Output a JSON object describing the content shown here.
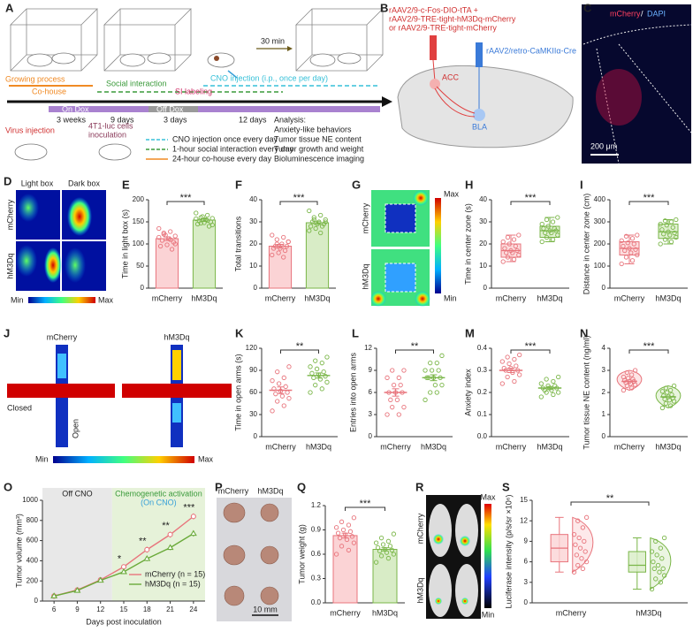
{
  "panel_labels": [
    "A",
    "B",
    "C",
    "D",
    "E",
    "F",
    "G",
    "H",
    "I",
    "J",
    "K",
    "L",
    "M",
    "N",
    "O",
    "P",
    "Q",
    "R",
    "S"
  ],
  "panel_A": {
    "growing": "Growing process",
    "cohouse": "Co-house",
    "social": "Social interaction",
    "si_label": "SI labeling",
    "cno": "CNO injection (i.p., once per day)",
    "wait": "30 min",
    "on_dox": "On Dox",
    "off_dox": "Off Dox",
    "durations": [
      "3 weeks",
      "9 days",
      "3 days",
      "12 days"
    ],
    "analysis_title": "Analysis:",
    "analysis": [
      "Anxiety-like behaviors",
      "Tumor tissue NE content",
      "Tumor growth and weight",
      "Bioluminescence imaging"
    ],
    "virus": "Virus injection",
    "cells": [
      "4T1-luc cells",
      "inoculation"
    ],
    "legend": [
      "CNO injection once every day",
      "1-hour social interaction every day",
      "24-hour co-house every day"
    ]
  },
  "panel_B": {
    "virus_red": [
      "rAAV2/9-c-Fos-DIO-tTA +",
      "rAAV2/9-TRE-tight-hM3Dq-mCherry",
      "or  rAAV2/9-TRE-tight-mCherry"
    ],
    "virus_blue": "rAAV2/retro-CaMKIIα-Cre",
    "acc": "ACC",
    "bla": "BLA"
  },
  "panel_C": {
    "red": "mCherry",
    "sep": "/",
    "blue": "DAPI",
    "scale": "200 μm"
  },
  "panel_D": {
    "columns": [
      "Light box",
      "Dark box"
    ],
    "rows": [
      "mCherry",
      "hM3Dq"
    ],
    "min": "Min",
    "max": "Max"
  },
  "panel_G": {
    "rows": [
      "mCherry",
      "hM3Dq"
    ],
    "max": "Max",
    "min": "Min"
  },
  "panel_J": {
    "columns": [
      "mCherry",
      "hM3Dq"
    ],
    "closed": "Closed",
    "open": "Open",
    "min": "Min",
    "max": "Max"
  },
  "panel_P": {
    "columns": [
      "mCherry",
      "hM3Dq"
    ],
    "scale": "10 mm"
  },
  "panel_R": {
    "rows": [
      "mCherry",
      "hM3Dq"
    ],
    "max": "Max",
    "min": "Min"
  },
  "chart_data": [
    {
      "type": "bar",
      "ylabel": "Time in light box (s)",
      "categories": [
        "mCherry",
        "hM3Dq"
      ],
      "colors": [
        "#e8747c",
        "#7ab648"
      ],
      "fills": [
        "#fbd3d5",
        "#d8ecc6"
      ],
      "values": [
        112,
        154
      ],
      "errors": [
        4,
        3
      ],
      "points": [
        [
          135,
          128,
          122,
          118,
          112,
          108,
          104,
          98,
          95,
          88,
          120,
          115,
          110,
          125,
          100
        ],
        [
          170,
          165,
          160,
          158,
          155,
          152,
          150,
          148,
          145,
          140,
          162,
          157,
          153,
          147,
          143
        ]
      ],
      "ylim": [
        0,
        200
      ],
      "yticks": [
        0,
        50,
        100,
        150,
        200
      ],
      "significance": "***"
    },
    {
      "type": "bar",
      "ylabel": "Total transitions",
      "categories": [
        "mCherry",
        "hM3Dq"
      ],
      "colors": [
        "#e8747c",
        "#7ab648"
      ],
      "fills": [
        "#fbd3d5",
        "#d8ecc6"
      ],
      "values": [
        19,
        29.6
      ],
      "errors": [
        0.8,
        0.7
      ],
      "points": [
        [
          24,
          23,
          22,
          21,
          20,
          19,
          19,
          18,
          18,
          17,
          16,
          15,
          14,
          20,
          21
        ],
        [
          35,
          33,
          32,
          31,
          30,
          30,
          29,
          29,
          28,
          28,
          27,
          26,
          25,
          31,
          30
        ]
      ],
      "ylim": [
        0,
        40
      ],
      "yticks": [
        0,
        10,
        20,
        30,
        40
      ],
      "significance": "***"
    },
    {
      "type": "box",
      "ylabel": "Time in center  zone (s)",
      "categories": [
        "mCherry",
        "hM3Dq"
      ],
      "colors": [
        "#e8747c",
        "#7ab648"
      ],
      "fills": [
        "#fbd3d5",
        "#d8ecc6"
      ],
      "q1": [
        14,
        23
      ],
      "median": [
        17,
        26
      ],
      "q3": [
        20,
        28
      ],
      "whisker_low": [
        12,
        21
      ],
      "whisker_high": [
        24,
        32
      ],
      "points": [
        [
          12,
          13,
          14,
          15,
          16,
          16,
          17,
          17,
          18,
          19,
          20,
          21,
          22,
          23,
          24
        ],
        [
          21,
          22,
          23,
          24,
          25,
          25,
          26,
          26,
          27,
          27,
          28,
          29,
          30,
          31,
          32
        ]
      ],
      "ylim": [
        0,
        40
      ],
      "yticks": [
        0,
        10,
        20,
        30,
        40
      ],
      "significance": "***"
    },
    {
      "type": "box",
      "ylabel": "Distance in center  zone  (cm)",
      "categories": [
        "mCherry",
        "hM3Dq"
      ],
      "colors": [
        "#e8747c",
        "#7ab648"
      ],
      "fills": [
        "#fbd3d5",
        "#d8ecc6"
      ],
      "q1": [
        150,
        225
      ],
      "median": [
        180,
        255
      ],
      "q3": [
        210,
        290
      ],
      "whisker_low": [
        110,
        200
      ],
      "whisker_high": [
        240,
        310
      ],
      "points": [
        [
          110,
          125,
          140,
          150,
          160,
          170,
          175,
          180,
          190,
          200,
          205,
          215,
          225,
          235,
          240
        ],
        [
          200,
          210,
          220,
          230,
          240,
          245,
          250,
          255,
          265,
          275,
          285,
          290,
          300,
          305,
          310
        ]
      ],
      "ylim": [
        0,
        400
      ],
      "yticks": [
        0,
        100,
        200,
        300,
        400
      ],
      "significance": "***"
    },
    {
      "type": "dot",
      "ylabel": "Time in open arms (s)",
      "categories": [
        "mCherry",
        "hM3Dq"
      ],
      "colors": [
        "#e8747c",
        "#7ab648"
      ],
      "values": [
        63,
        83
      ],
      "errors": [
        4.5,
        3.5
      ],
      "points": [
        [
          35,
          42,
          48,
          52,
          55,
          58,
          60,
          62,
          65,
          68,
          72,
          76,
          80,
          88,
          95
        ],
        [
          60,
          65,
          70,
          74,
          78,
          80,
          82,
          84,
          86,
          88,
          92,
          95,
          100,
          103,
          108
        ]
      ],
      "ylim": [
        0,
        120
      ],
      "yticks": [
        0,
        30,
        60,
        90,
        120
      ],
      "significance": "**"
    },
    {
      "type": "dot",
      "ylabel": "Entries into open arms",
      "categories": [
        "mCherry",
        "hM3Dq"
      ],
      "colors": [
        "#e8747c",
        "#7ab648"
      ],
      "values": [
        6,
        8
      ],
      "errors": [
        0.5,
        0.4
      ],
      "points": [
        [
          3,
          3,
          4,
          4,
          5,
          5,
          6,
          6,
          6,
          7,
          7,
          8,
          8,
          9,
          9
        ],
        [
          5,
          6,
          6,
          7,
          7,
          8,
          8,
          8,
          8,
          9,
          9,
          9,
          10,
          10,
          11
        ]
      ],
      "ylim": [
        0,
        12
      ],
      "yticks": [
        0,
        3,
        6,
        9,
        12
      ],
      "significance": "**"
    },
    {
      "type": "dot",
      "ylabel": "Anxiety index",
      "categories": [
        "mCherry",
        "hM3Dq"
      ],
      "colors": [
        "#e8747c",
        "#7ab648"
      ],
      "values": [
        0.3,
        0.22
      ],
      "errors": [
        0.01,
        0.007
      ],
      "points": [
        [
          0.24,
          0.25,
          0.27,
          0.28,
          0.29,
          0.3,
          0.3,
          0.31,
          0.31,
          0.32,
          0.33,
          0.34,
          0.35,
          0.36,
          0.37
        ],
        [
          0.18,
          0.19,
          0.2,
          0.2,
          0.21,
          0.21,
          0.22,
          0.22,
          0.22,
          0.23,
          0.23,
          0.24,
          0.25,
          0.26,
          0.27
        ]
      ],
      "ylim": [
        0,
        0.4
      ],
      "yticks": [
        {
          "value": 0,
          "label": "0.0"
        },
        0.1,
        0.2,
        0.3,
        0.4
      ],
      "significance": "***"
    },
    {
      "type": "violin",
      "ylabel": "Tumor tissue NE content (ng/ml)",
      "categories": [
        "mCherry",
        "hM3Dq"
      ],
      "colors": [
        "#e8747c",
        "#7ab648"
      ],
      "fills": [
        "#fbd3d5",
        "#d8ecc6"
      ],
      "values": [
        2.5,
        1.8
      ],
      "points": [
        [
          2.1,
          2.2,
          2.3,
          2.35,
          2.4,
          2.45,
          2.5,
          2.5,
          2.55,
          2.6,
          2.65,
          2.7,
          2.8,
          2.9,
          3.0
        ],
        [
          1.3,
          1.4,
          1.5,
          1.6,
          1.65,
          1.7,
          1.75,
          1.8,
          1.85,
          1.9,
          2.0,
          2.05,
          2.1,
          2.2,
          2.3
        ]
      ],
      "ylim": [
        0,
        4
      ],
      "yticks": [
        0,
        1,
        2,
        3,
        4
      ],
      "significance": "***"
    },
    {
      "type": "line",
      "ylabel": "Tumor volume (mm³)",
      "xlabel": "Days post inoculation",
      "x": [
        6,
        9,
        12,
        15,
        18,
        21,
        24
      ],
      "xlim": [
        4.5,
        25.5
      ],
      "xticks": [
        6,
        9,
        12,
        15,
        18,
        21,
        24
      ],
      "ylim": [
        0,
        1000
      ],
      "yticks": [
        0,
        200,
        400,
        600,
        800,
        1000
      ],
      "series": [
        {
          "name": "mCherry (n = 15)",
          "color": "#e8747c",
          "values": [
            50,
            110,
            210,
            340,
            510,
            660,
            840
          ],
          "errors": [
            5,
            8,
            12,
            25,
            30,
            30,
            30
          ]
        },
        {
          "name": "hM3Dq (n = 15)",
          "color": "#6aaa3a",
          "values": [
            50,
            105,
            205,
            290,
            420,
            530,
            670
          ],
          "errors": [
            5,
            8,
            12,
            20,
            25,
            25,
            30
          ]
        }
      ],
      "regions": [
        {
          "label": "Off CNO",
          "from": 4.5,
          "to": 13.5,
          "color": "#e8e8e8"
        },
        {
          "label": "Chemogenetic activation",
          "sublabel": "(On CNO)",
          "from": 13.5,
          "to": 25.5,
          "color": "#e6f2d9"
        }
      ],
      "annotations": [
        {
          "x": 15,
          "text": "*"
        },
        {
          "x": 18,
          "text": "**"
        },
        {
          "x": 21,
          "text": "**"
        },
        {
          "x": 24,
          "text": "***"
        }
      ]
    },
    {
      "type": "bar",
      "ylabel": "Tumor weight (g)",
      "categories": [
        "mCherry",
        "hM3Dq"
      ],
      "colors": [
        "#e8747c",
        "#7ab648"
      ],
      "fills": [
        "#fbd3d5",
        "#d8ecc6"
      ],
      "values": [
        0.83,
        0.66
      ],
      "errors": [
        0.03,
        0.02
      ],
      "points": [
        [
          0.6,
          0.65,
          0.7,
          0.74,
          0.78,
          0.8,
          0.82,
          0.84,
          0.86,
          0.88,
          0.9,
          0.93,
          0.96,
          1.0,
          1.05
        ],
        [
          0.5,
          0.55,
          0.58,
          0.6,
          0.62,
          0.64,
          0.65,
          0.66,
          0.68,
          0.7,
          0.72,
          0.74,
          0.76,
          0.8,
          0.85
        ]
      ],
      "ylim": [
        0,
        1.2
      ],
      "yticks": [
        {
          "value": 0,
          "label": "0.0"
        },
        0.3,
        0.6,
        0.9,
        1.2
      ],
      "significance": "***"
    },
    {
      "type": "box_violin",
      "ylabel": "Luciferase intensity (p/s/sr ×10⁶)",
      "categories": [
        "mCherry",
        "hM3Dq"
      ],
      "colors": [
        "#e8747c",
        "#7ab648"
      ],
      "fills": [
        "#fbd3d5",
        "#d8ecc6"
      ],
      "q1": [
        6,
        4.5
      ],
      "median": [
        8,
        5.5
      ],
      "q3": [
        10,
        7.5
      ],
      "whisker_low": [
        4.5,
        2
      ],
      "whisker_high": [
        12.5,
        9.5
      ],
      "points": [
        [
          4.5,
          5,
          5.5,
          6,
          6.5,
          7,
          7.5,
          8,
          8.5,
          9,
          9.5,
          10,
          11,
          12,
          12.5
        ],
        [
          2,
          3,
          3.5,
          4,
          4.5,
          5,
          5,
          5.5,
          6,
          6.5,
          7,
          7.5,
          8,
          9,
          9.5
        ]
      ],
      "ylim": [
        0,
        15
      ],
      "yticks": [
        0,
        3,
        6,
        9,
        12,
        15
      ],
      "significance": "**"
    }
  ]
}
